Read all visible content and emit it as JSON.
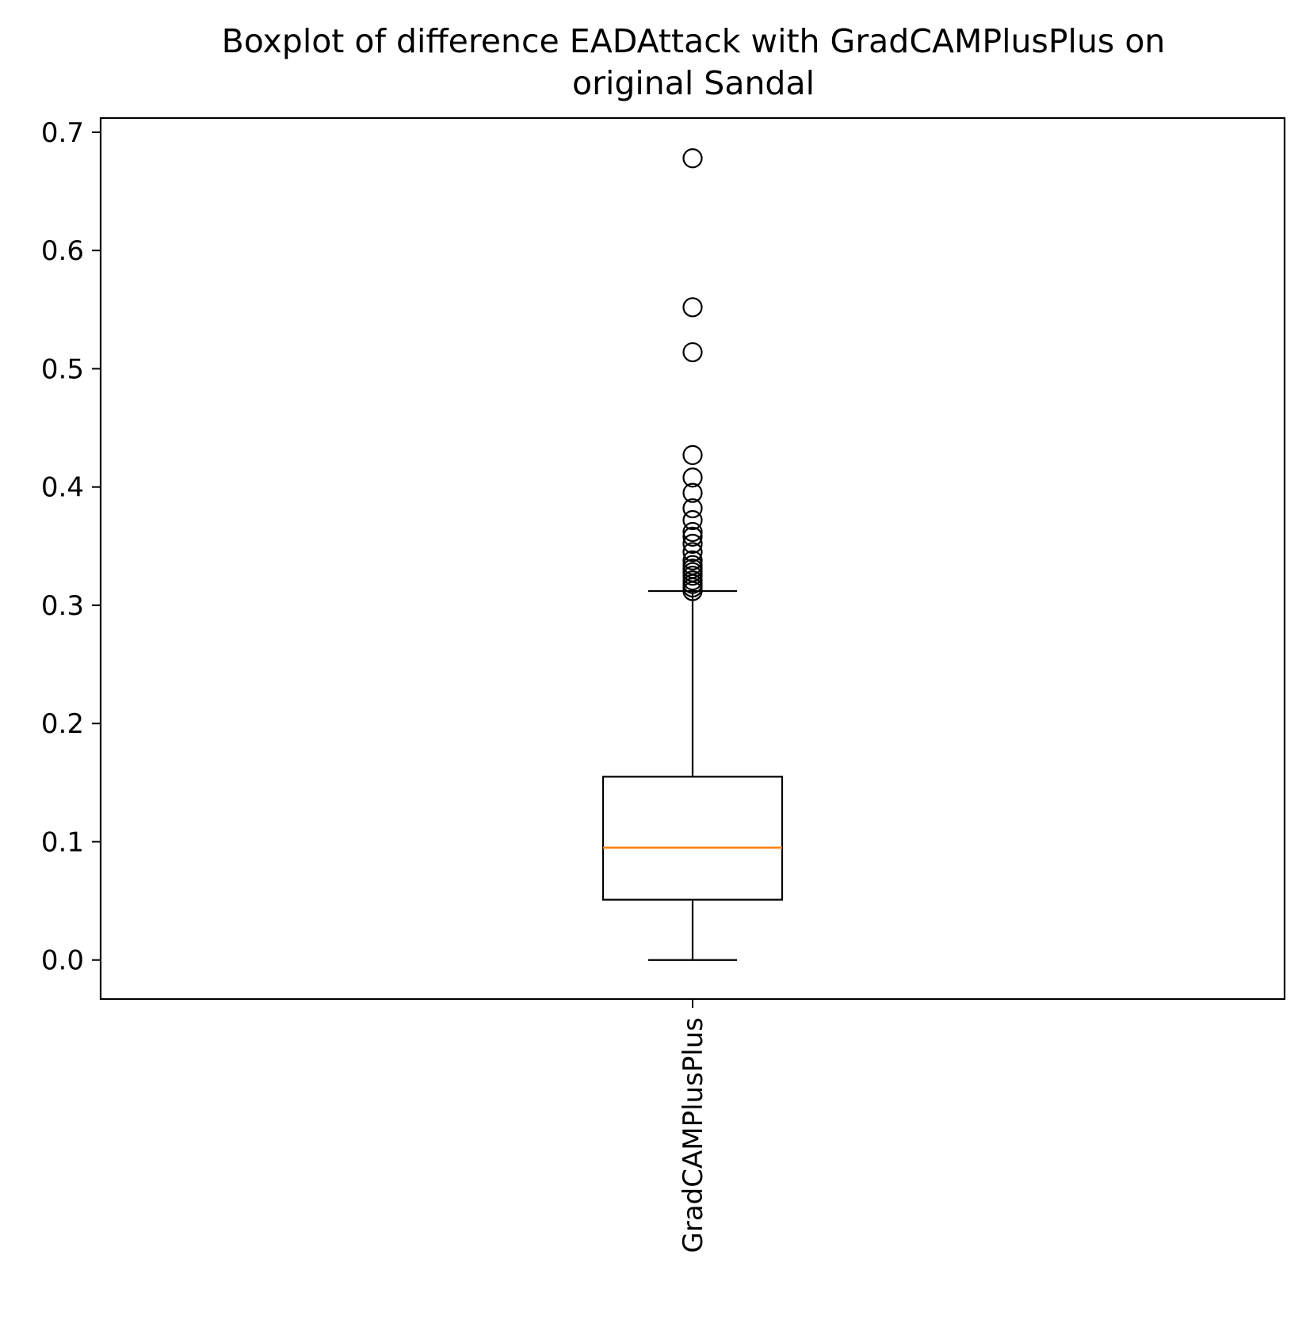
{
  "chart_data": {
    "type": "boxplot",
    "title_lines": [
      "Boxplot of difference EADAttack with GradCAMPlusPlus on",
      "original Sandal"
    ],
    "xlabel": "",
    "ylabel": "",
    "ylim": [
      -0.033,
      0.712
    ],
    "yticks": [
      0.0,
      0.1,
      0.2,
      0.3,
      0.4,
      0.5,
      0.6,
      0.7
    ],
    "ytick_labels": [
      "0.0",
      "0.1",
      "0.2",
      "0.3",
      "0.4",
      "0.5",
      "0.6",
      "0.7"
    ],
    "categories": [
      "GradCAMPlusPlus"
    ],
    "grid": false,
    "legend": "none",
    "boxes": [
      {
        "label": "GradCAMPlusPlus",
        "whisker_low": 0.0,
        "q1": 0.051,
        "median": 0.095,
        "q3": 0.155,
        "whisker_high": 0.312,
        "outliers": [
          0.312,
          0.315,
          0.318,
          0.321,
          0.325,
          0.328,
          0.331,
          0.334,
          0.338,
          0.345,
          0.352,
          0.358,
          0.362,
          0.372,
          0.382,
          0.395,
          0.408,
          0.427,
          0.514,
          0.552,
          0.678
        ]
      }
    ],
    "colors": {
      "box": "#000000",
      "median": "#ff7f0e",
      "outlier": "#000000"
    }
  }
}
